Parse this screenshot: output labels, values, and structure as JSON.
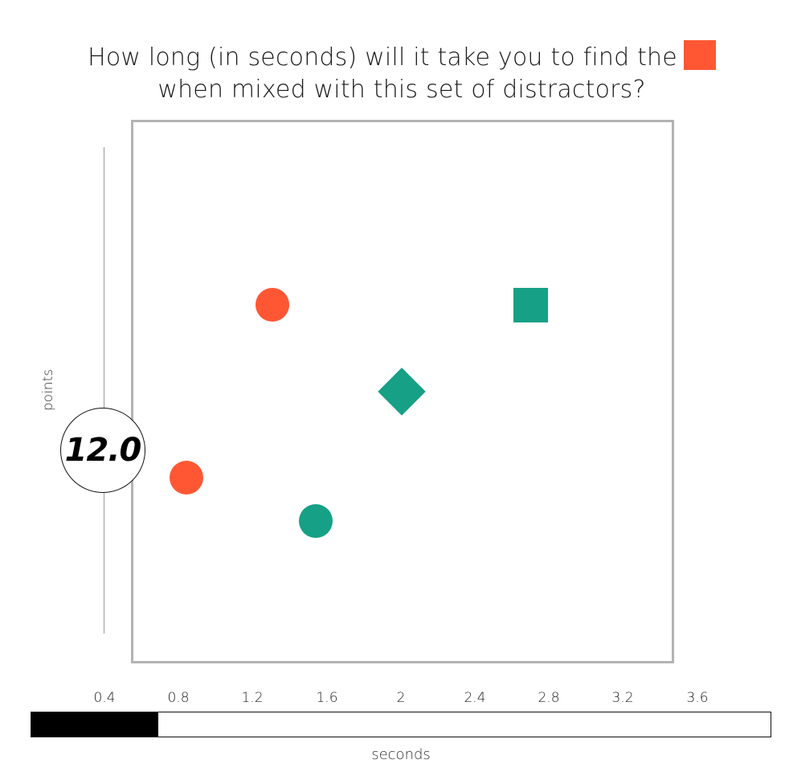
{
  "question": {
    "line1": "How long (in seconds) will it take you to find the",
    "line2": "when mixed with this set of distractors?",
    "target": {
      "shape": "square",
      "color": "#FF5733"
    }
  },
  "display": {
    "items": [
      {
        "name": "orange-circle-upper",
        "shape": "circle",
        "color": "#FF5733"
      },
      {
        "name": "teal-square",
        "shape": "square",
        "color": "#16A085"
      },
      {
        "name": "teal-diamond",
        "shape": "diamond",
        "color": "#16A085"
      },
      {
        "name": "orange-circle-lower",
        "shape": "circle",
        "color": "#FF5733"
      },
      {
        "name": "teal-circle",
        "shape": "circle",
        "color": "#16A085"
      }
    ]
  },
  "points": {
    "label": "points",
    "value": "12.0"
  },
  "timer": {
    "ticks": [
      "0.4",
      "0.8",
      "1.2",
      "1.6",
      "2",
      "2.4",
      "2.8",
      "3.2",
      "3.6"
    ],
    "max_seconds": 4,
    "elapsed_fraction": 0.172,
    "label": "seconds"
  }
}
